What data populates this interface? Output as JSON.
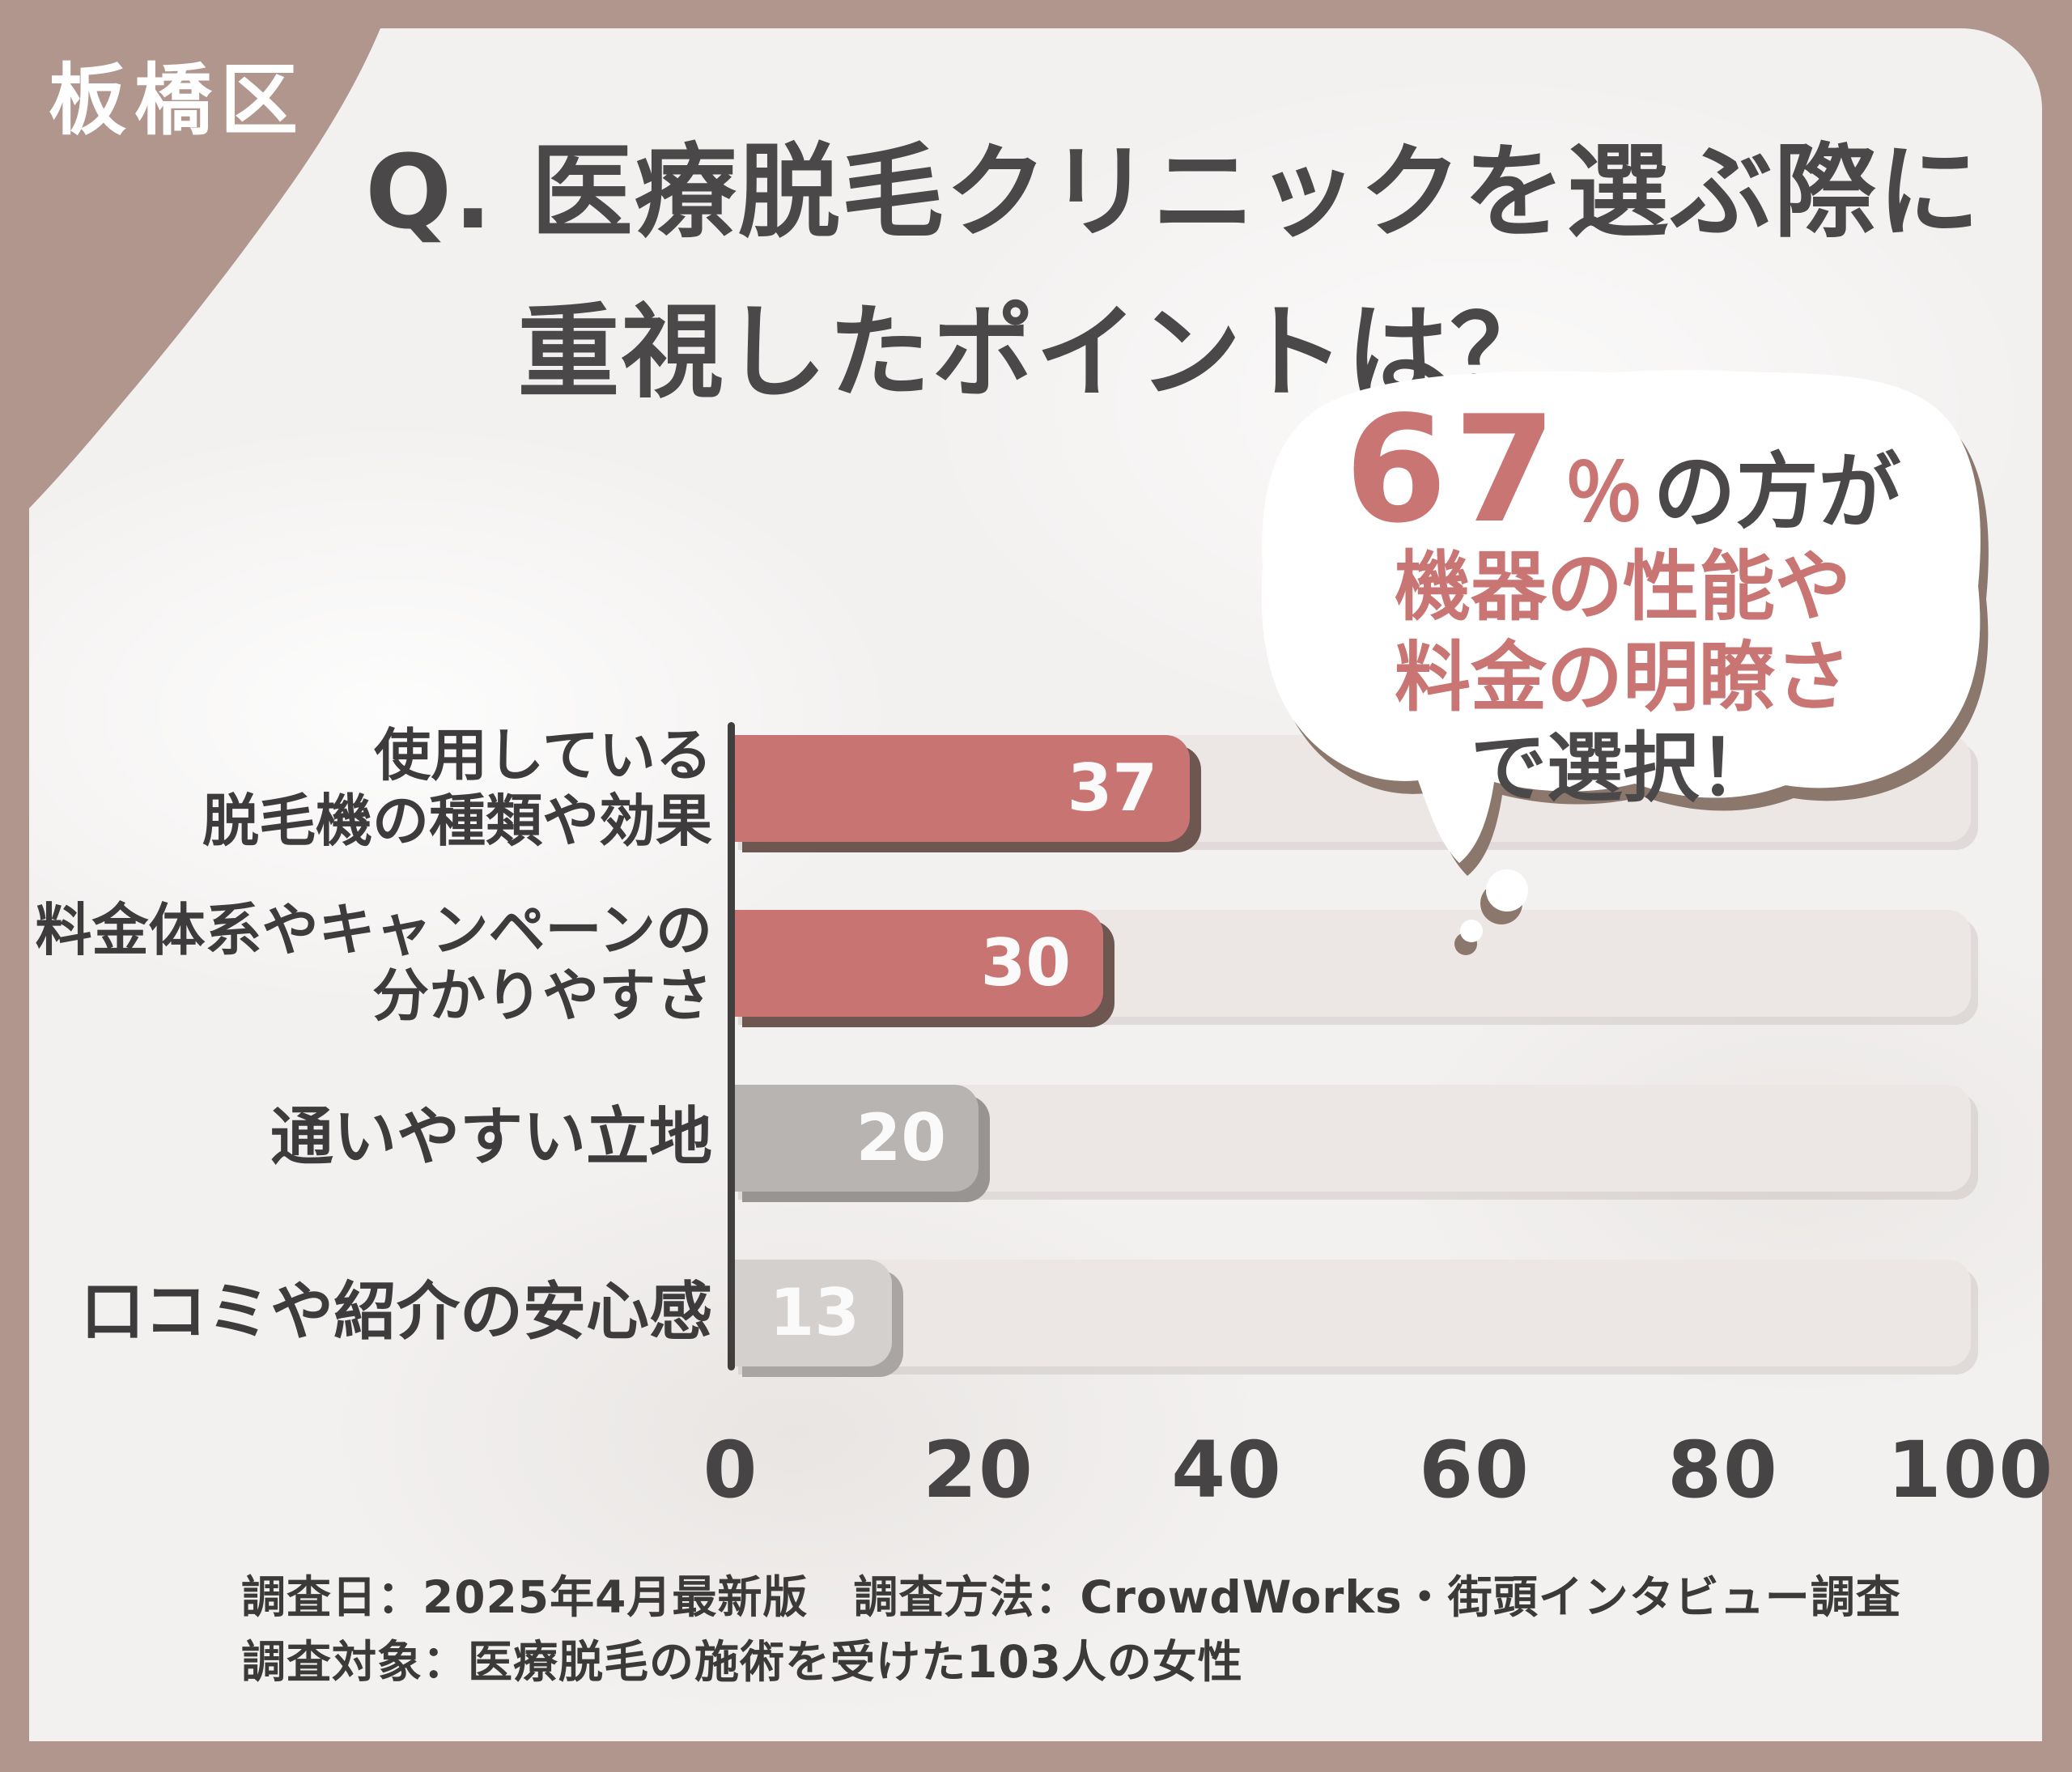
{
  "badge": {
    "label": "板橋区"
  },
  "title": {
    "line1": "Q. 医療脱毛クリニックを選ぶ際に",
    "line2": "重視したポイントは？"
  },
  "bubble": {
    "stat": "67",
    "percent": "％",
    "stat_suffix": "の方が",
    "line2": "機器の性能や",
    "line3": "料金の明瞭さ",
    "line4": "で選択！"
  },
  "chart_data": {
    "type": "bar",
    "orientation": "horizontal",
    "title": "Q. 医療脱毛クリニックを選ぶ際に重視したポイントは？",
    "categories": [
      "使用している脱毛機の種類や効果",
      "料金体系やキャンペーンの分かりやすさ",
      "通いやすい立地",
      "口コミや紹介の安心感"
    ],
    "values": [
      37,
      30,
      20,
      13
    ],
    "xlim": [
      0,
      100
    ],
    "ticks": [
      0,
      20,
      40,
      60,
      80,
      100
    ],
    "grid": false,
    "legend": false,
    "bar_colors": [
      "#c87472",
      "#c87472",
      "#b8b4b2",
      "#d3d0ce"
    ],
    "bar_shadow_colors": [
      "#6f5751",
      "#6f5751",
      "#989492",
      "#a9a5a3"
    ],
    "rows": [
      {
        "label1": "使用している",
        "label2": "脱毛機の種類や効果",
        "value": "37"
      },
      {
        "label1": "料金体系やキャンペーンの",
        "label2": "分かりやすさ",
        "value": "30"
      },
      {
        "label1": "通いやすい立地",
        "label2": "",
        "value": "20"
      },
      {
        "label1": "口コミや紹介の安心感",
        "label2": "",
        "value": "13"
      }
    ]
  },
  "footer": {
    "line1": "調査日：2025年4月最新版　調査方法：CrowdWorks・街頭インタビュー調査",
    "line2": "調査対象：医療脱毛の施術を受けた103人の女性"
  },
  "colors": {
    "frame": "#b1968e",
    "accent_rose": "#c87472",
    "text_dark": "#4a4849",
    "track": "#ece7e4",
    "bubble_shadow": "#8c776c",
    "axis": "#413f3e"
  }
}
